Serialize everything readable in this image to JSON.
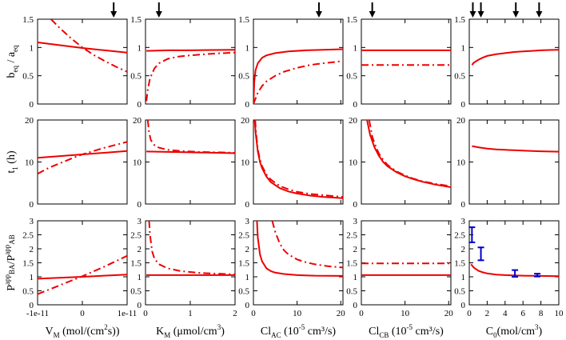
{
  "colors": {
    "curve": "#ee0000",
    "errorbar": "#0000cc",
    "axis": "#000000"
  },
  "row_labels": [
    {
      "main": "b",
      "sub1": "eq",
      "mid": " / a",
      "sub2": "eq"
    },
    {
      "main": "t",
      "sub1": "1",
      "mid": " (h)",
      "sub2": ""
    },
    {
      "main": "P",
      "sub1": "BA",
      "sup1": "app",
      "mid": "/P",
      "sub2": "AB",
      "sup2": "app"
    }
  ],
  "col_labels": [
    {
      "pre": "V",
      "sub": "M",
      "post": " (mol/(cm",
      "sup": "2",
      "post2": "s))"
    },
    {
      "pre": "K",
      "sub": "M",
      "post": " (μmol/cm",
      "sup": "3",
      "post2": ")"
    },
    {
      "pre": "Cl",
      "sub": "AC",
      "post": " (10",
      "sup": "-5",
      "post2": " cm³/s)"
    },
    {
      "pre": "Cl",
      "sub": "CB",
      "post": " (10",
      "sup": "-5",
      "post2": " cm³/s)"
    },
    {
      "pre": "C",
      "sub": "0",
      "post": "(mol/cm",
      "sup": "3",
      "post2": ")"
    }
  ],
  "chart_data": {
    "type": "line",
    "title": "",
    "columns": [
      {
        "xlim": [
          -1e-11,
          1e-11
        ],
        "xticks": [
          -1e-11,
          0,
          1e-11
        ],
        "xticklabels": [
          "-1e-11",
          "0",
          "1e-11"
        ],
        "arrows": [
          7e-12
        ]
      },
      {
        "xlim": [
          0,
          2
        ],
        "xticks": [
          0,
          1,
          2
        ],
        "xticklabels": [
          "0",
          "1",
          "2"
        ],
        "arrows": [
          0.3
        ]
      },
      {
        "xlim": [
          0,
          20.5
        ],
        "xticks": [
          0,
          10,
          20
        ],
        "xticklabels": [
          "0",
          "10",
          "20"
        ],
        "arrows": [
          15
        ]
      },
      {
        "xlim": [
          0,
          20.5
        ],
        "xticks": [
          0,
          10,
          20
        ],
        "xticklabels": [
          "0",
          "10",
          "20"
        ],
        "arrows": [
          2.5
        ]
      },
      {
        "xlim": [
          0,
          10
        ],
        "xticks": [
          0,
          2,
          4,
          6,
          8,
          10
        ],
        "xticklabels": [
          "0",
          "2",
          "4",
          "6",
          "8",
          "10"
        ],
        "arrows": [
          0.4,
          1.3,
          5.2,
          7.8
        ]
      }
    ],
    "rows": [
      {
        "ylim": [
          0,
          1.5
        ],
        "yticks": [
          0,
          0.5,
          1,
          1.5
        ],
        "yticklabels": [
          "0",
          "0.5",
          "1",
          "1.5"
        ]
      },
      {
        "ylim": [
          0,
          20
        ],
        "yticks": [
          0,
          10,
          20
        ],
        "yticklabels": [
          "0",
          "10",
          "20"
        ]
      },
      {
        "ylim": [
          0,
          3
        ],
        "yticks": [
          0,
          0.5,
          1,
          1.5,
          2,
          2.5,
          3
        ],
        "yticklabels": [
          "0",
          "0.5",
          "1",
          "1.5",
          "2",
          "2.5",
          "3"
        ]
      }
    ],
    "panels": [
      {
        "row": 0,
        "col": 0,
        "series": [
          {
            "name": "solid",
            "style": "solid",
            "x": [
              -1e-11,
              -5e-12,
              0,
              5e-12,
              1e-11
            ],
            "y": [
              1.09,
              1.04,
              0.99,
              0.95,
              0.91
            ]
          },
          {
            "name": "dashdot",
            "style": "dashdot",
            "x": [
              -7e-12,
              -5e-12,
              -2.5e-12,
              0,
              2.5e-12,
              5e-12,
              7.5e-12,
              1e-11
            ],
            "y": [
              1.5,
              1.34,
              1.16,
              1.0,
              0.87,
              0.76,
              0.66,
              0.57
            ]
          }
        ]
      },
      {
        "row": 0,
        "col": 1,
        "series": [
          {
            "name": "solid",
            "style": "solid",
            "x": [
              0.02,
              0.5,
              1,
              1.5,
              2
            ],
            "y": [
              0.94,
              0.95,
              0.95,
              0.955,
              0.96
            ]
          },
          {
            "name": "dashdot",
            "style": "dashdot",
            "x": [
              0.02,
              0.05,
              0.1,
              0.2,
              0.3,
              0.5,
              0.75,
              1,
              1.5,
              2
            ],
            "y": [
              0.05,
              0.25,
              0.45,
              0.63,
              0.72,
              0.8,
              0.84,
              0.86,
              0.89,
              0.91
            ]
          }
        ]
      },
      {
        "row": 0,
        "col": 2,
        "series": [
          {
            "name": "solid",
            "style": "solid",
            "x": [
              0,
              0.2,
              0.5,
              1,
              2,
              3,
              5,
              8,
              12,
              16,
              20.5
            ],
            "y": [
              0,
              0.4,
              0.6,
              0.72,
              0.82,
              0.86,
              0.9,
              0.93,
              0.95,
              0.96,
              0.97
            ]
          },
          {
            "name": "dashdot",
            "style": "dashdot",
            "x": [
              0,
              1,
              2,
              3,
              5,
              7,
              10,
              13,
              16,
              20.5
            ],
            "y": [
              0,
              0.2,
              0.32,
              0.4,
              0.5,
              0.57,
              0.64,
              0.69,
              0.72,
              0.76
            ]
          }
        ]
      },
      {
        "row": 0,
        "col": 3,
        "series": [
          {
            "name": "solid",
            "style": "solid",
            "x": [
              0,
              20.5
            ],
            "y": [
              0.95,
              0.95
            ]
          },
          {
            "name": "dashdot",
            "style": "dashdot",
            "x": [
              0,
              20.5
            ],
            "y": [
              0.69,
              0.69
            ]
          }
        ]
      },
      {
        "row": 0,
        "col": 4,
        "series": [
          {
            "name": "solid",
            "style": "solid",
            "x": [
              0.3,
              0.5,
              1,
              1.5,
              2,
              3,
              4,
              5,
              6,
              7,
              8,
              9,
              10
            ],
            "y": [
              0.69,
              0.73,
              0.78,
              0.82,
              0.85,
              0.88,
              0.9,
              0.92,
              0.93,
              0.94,
              0.95,
              0.955,
              0.96
            ]
          }
        ]
      },
      {
        "row": 1,
        "col": 0,
        "series": [
          {
            "name": "solid",
            "style": "solid",
            "x": [
              -1e-11,
              0,
              1e-11
            ],
            "y": [
              11,
              11.8,
              12.6
            ]
          },
          {
            "name": "dashdot",
            "style": "dashdot",
            "x": [
              -1e-11,
              -7.5e-12,
              -5e-12,
              -2.5e-12,
              0,
              2.5e-12,
              5e-12,
              7.5e-12,
              1e-11
            ],
            "y": [
              7.2,
              8.6,
              9.7,
              10.8,
              11.8,
              12.6,
              13.4,
              14.1,
              14.8
            ]
          }
        ]
      },
      {
        "row": 1,
        "col": 1,
        "series": [
          {
            "name": "solid",
            "style": "solid",
            "x": [
              0.02,
              0.5,
              1,
              1.5,
              2
            ],
            "y": [
              12.5,
              12.4,
              12.3,
              12.2,
              12.1
            ]
          },
          {
            "name": "dashdot",
            "style": "dashdot",
            "x": [
              0.05,
              0.08,
              0.12,
              0.2,
              0.3,
              0.5,
              0.8,
              1.2,
              1.6,
              2
            ],
            "y": [
              20,
              17,
              15.2,
              14,
              13.4,
              12.9,
              12.6,
              12.4,
              12.3,
              12.2
            ]
          }
        ]
      },
      {
        "row": 1,
        "col": 2,
        "series": [
          {
            "name": "solid",
            "style": "solid",
            "x": [
              0.3,
              0.5,
              1,
              1.5,
              2,
              3,
              4,
              6,
              8,
              10,
              13,
              16,
              20.5
            ],
            "y": [
              20,
              17,
              12.5,
              10,
              8.5,
              6.5,
              5.2,
              3.8,
              3,
              2.5,
              2,
              1.7,
              1.4
            ]
          },
          {
            "name": "dashdot",
            "style": "dashdot",
            "x": [
              0.4,
              0.6,
              1,
              1.5,
              2,
              3,
              4,
              6,
              8,
              10,
              13,
              16,
              20.5
            ],
            "y": [
              20,
              17,
              13,
              10.5,
              9,
              7,
              5.8,
              4.3,
              3.5,
              2.9,
              2.4,
              2.1,
              1.7
            ]
          }
        ]
      },
      {
        "row": 1,
        "col": 3,
        "series": [
          {
            "name": "solid",
            "style": "solid",
            "x": [
              1.3,
              2,
              3,
              4,
              5,
              6,
              8,
              10,
              12,
              14,
              17,
              20.5
            ],
            "y": [
              20,
              16.5,
              13.5,
              11.5,
              10,
              9,
              7.6,
              6.6,
              5.9,
              5.3,
              4.6,
              4.0
            ]
          },
          {
            "name": "dashdot",
            "style": "dashdot",
            "x": [
              1.8,
              2.5,
              3,
              4,
              5,
              6,
              8,
              10,
              12,
              14,
              17,
              20.5
            ],
            "y": [
              20,
              16,
              14.5,
              12,
              10.5,
              9.3,
              7.8,
              6.8,
              6.0,
              5.4,
              4.8,
              4.2
            ]
          }
        ]
      },
      {
        "row": 1,
        "col": 4,
        "series": [
          {
            "name": "solid",
            "style": "solid",
            "x": [
              0.3,
              1,
              2,
              3,
              4,
              5,
              6,
              7,
              8,
              9,
              10
            ],
            "y": [
              13.8,
              13.5,
              13.2,
              13,
              12.9,
              12.8,
              12.7,
              12.6,
              12.55,
              12.5,
              12.45
            ]
          }
        ]
      },
      {
        "row": 2,
        "col": 0,
        "series": [
          {
            "name": "solid",
            "style": "solid",
            "x": [
              -1e-11,
              0,
              1e-11
            ],
            "y": [
              0.93,
              1.0,
              1.08
            ]
          },
          {
            "name": "dashdot",
            "style": "dashdot",
            "x": [
              -1e-11,
              -5e-12,
              0,
              5e-12,
              1e-11
            ],
            "y": [
              0.38,
              0.7,
              1.02,
              1.37,
              1.75
            ]
          }
        ]
      },
      {
        "row": 2,
        "col": 1,
        "series": [
          {
            "name": "solid",
            "style": "solid",
            "x": [
              0.02,
              0.5,
              1,
              1.5,
              2
            ],
            "y": [
              1.06,
              1.06,
              1.06,
              1.06,
              1.06
            ]
          },
          {
            "name": "dashdot",
            "style": "dashdot",
            "x": [
              0.08,
              0.1,
              0.15,
              0.2,
              0.3,
              0.5,
              0.8,
              1.2,
              1.6,
              2
            ],
            "y": [
              3,
              2.5,
              1.9,
              1.65,
              1.45,
              1.3,
              1.2,
              1.14,
              1.11,
              1.09
            ]
          }
        ]
      },
      {
        "row": 2,
        "col": 2,
        "series": [
          {
            "name": "solid",
            "style": "solid",
            "x": [
              0.8,
              1,
              1.5,
              2,
              3,
              4,
              5,
              7,
              10,
              14,
              20.5
            ],
            "y": [
              3,
              2.4,
              1.8,
              1.55,
              1.3,
              1.2,
              1.15,
              1.1,
              1.06,
              1.04,
              1.03
            ]
          },
          {
            "name": "dashdot",
            "style": "dashdot",
            "x": [
              4.3,
              5,
              6,
              7,
              8,
              10,
              12,
              14,
              17,
              20.5
            ],
            "y": [
              3,
              2.6,
              2.2,
              1.95,
              1.8,
              1.62,
              1.52,
              1.45,
              1.38,
              1.33
            ]
          }
        ]
      },
      {
        "row": 2,
        "col": 3,
        "series": [
          {
            "name": "solid",
            "style": "solid",
            "x": [
              0,
              20.5
            ],
            "y": [
              1.06,
              1.06
            ]
          },
          {
            "name": "dashdot",
            "style": "dashdot",
            "x": [
              0,
              20.5
            ],
            "y": [
              1.48,
              1.48
            ]
          }
        ]
      },
      {
        "row": 2,
        "col": 4,
        "series": [
          {
            "name": "solid",
            "style": "solid",
            "x": [
              0.2,
              0.5,
              1,
              1.5,
              2,
              3,
              4,
              5,
              6,
              7,
              8,
              10
            ],
            "y": [
              1.45,
              1.33,
              1.22,
              1.16,
              1.12,
              1.08,
              1.06,
              1.05,
              1.04,
              1.035,
              1.03,
              1.02
            ]
          }
        ],
        "errorbars": [
          {
            "x": 0.3,
            "y": 2.5,
            "err": 0.27
          },
          {
            "x": 1.3,
            "y": 1.82,
            "err": 0.23
          },
          {
            "x": 5.1,
            "y": 1.12,
            "err": 0.12
          },
          {
            "x": 7.6,
            "y": 1.06,
            "err": 0.05
          }
        ]
      }
    ]
  }
}
